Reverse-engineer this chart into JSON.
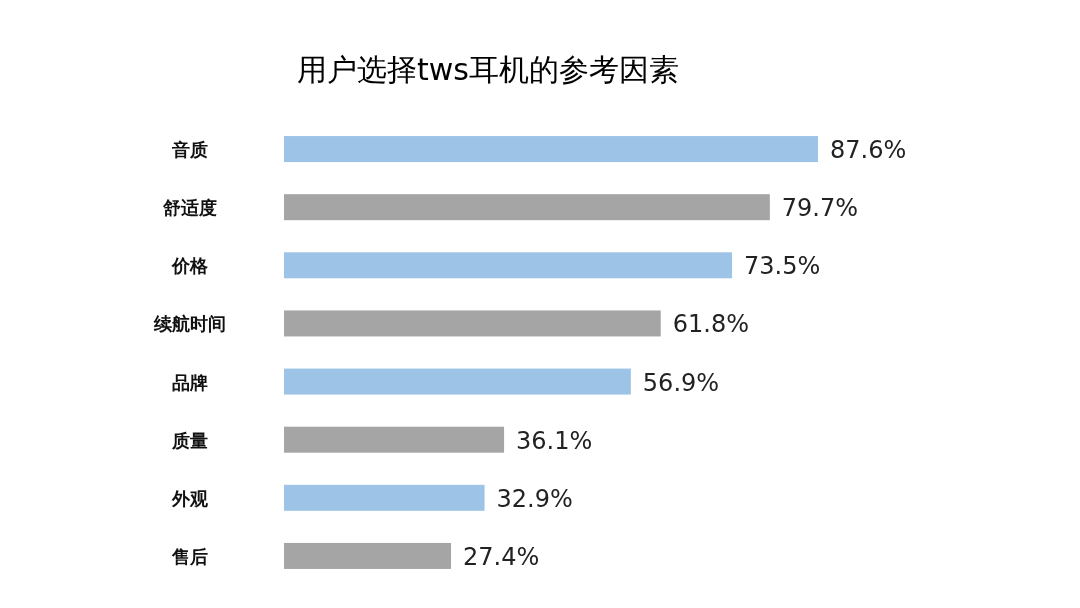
{
  "chart_data": {
    "type": "bar",
    "orientation": "horizontal",
    "title": "用户选择tws耳机的参考因素",
    "categories": [
      "音质",
      "舒适度",
      "价格",
      "续航时间",
      "品牌",
      "质量",
      "外观",
      "售后"
    ],
    "values": [
      87.6,
      79.7,
      73.5,
      61.8,
      56.9,
      36.1,
      32.9,
      27.4
    ],
    "value_labels": [
      "87.6%",
      "79.7%",
      "73.5%",
      "61.8%",
      "56.9%",
      "36.1%",
      "32.9%",
      "27.4%"
    ],
    "colors": [
      "#9dc3e6",
      "#a5a5a5",
      "#9dc3e6",
      "#a5a5a5",
      "#9dc3e6",
      "#a5a5a5",
      "#9dc3e6",
      "#a5a5a5"
    ]
  }
}
